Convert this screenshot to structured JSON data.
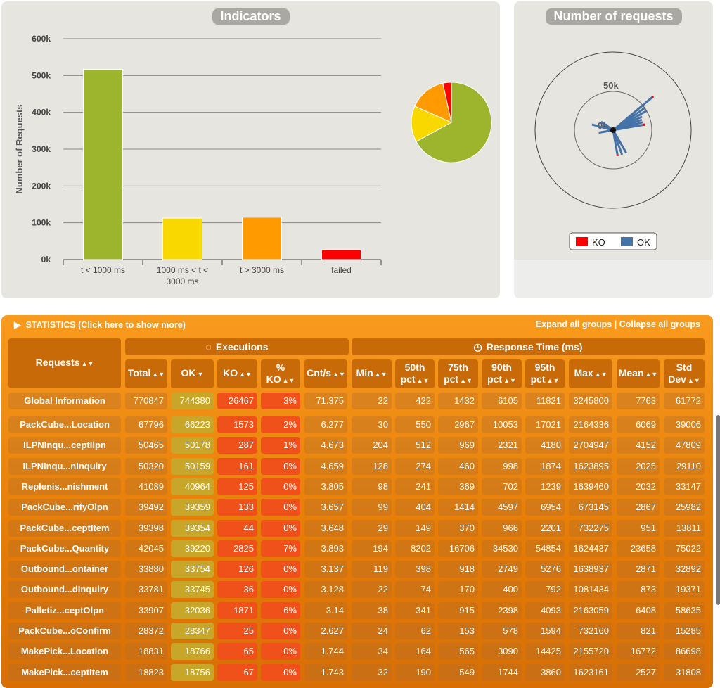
{
  "indicators": {
    "title": "Indicators",
    "ylabel": "Number of Requests"
  },
  "requests_chart": {
    "title": "Number of requests",
    "ring_label": "50k",
    "center_label": "0k",
    "legend": [
      {
        "label": "KO",
        "color": "#ff0000"
      },
      {
        "label": "OK",
        "color": "#4572a7"
      }
    ]
  },
  "chart_data": [
    {
      "type": "bar",
      "title": "Indicators",
      "ylabel": "Number of Requests",
      "ylim": [
        0,
        600000
      ],
      "yticks": [
        "0k",
        "100k",
        "200k",
        "300k",
        "400k",
        "500k",
        "600k"
      ],
      "categories": [
        "t < 1000 ms",
        "1000 ms < t < 3000 ms",
        "t > 3000 ms",
        "failed"
      ],
      "values": [
        517000,
        112500,
        115000,
        26467
      ],
      "colors": [
        "#9cb52d",
        "#f9d800",
        "#ff9b00",
        "#ff0000"
      ],
      "grid": true
    },
    {
      "type": "pie",
      "values": [
        517000,
        112500,
        115000,
        26467
      ],
      "colors": [
        "#9cb52d",
        "#f9d800",
        "#ff9b00",
        "#ff0000"
      ]
    }
  ],
  "stats": {
    "title": "STATISTICS (Click here to show more)",
    "expand": "Expand all groups",
    "sep": "|",
    "collapse": "Collapse all groups",
    "group_exec": "Executions",
    "group_rt": "Response Time (ms)",
    "requests_header": "Requests",
    "columns": [
      "Total",
      "OK",
      "KO",
      "% KO",
      "Cnt/s",
      "Min",
      "50th pct",
      "75th pct",
      "90th pct",
      "95th pct",
      "Max",
      "Mean",
      "Std Dev"
    ],
    "global": [
      "Global Information",
      "770847",
      "744380",
      "26467",
      "3%",
      "71.375",
      "22",
      "422",
      "1432",
      "6105",
      "11821",
      "3245800",
      "7763",
      "61772"
    ],
    "rows": [
      [
        "PackCube...Location",
        "67796",
        "66223",
        "1573",
        "2%",
        "6.277",
        "30",
        "550",
        "2967",
        "10053",
        "17021",
        "2164336",
        "6069",
        "39006"
      ],
      [
        "ILPNInqu...ceptIlpn",
        "50465",
        "50178",
        "287",
        "1%",
        "4.673",
        "204",
        "512",
        "969",
        "2321",
        "4180",
        "2704947",
        "4152",
        "47809"
      ],
      [
        "ILPNInqu...nInquiry",
        "50320",
        "50159",
        "161",
        "0%",
        "4.659",
        "128",
        "274",
        "460",
        "998",
        "1874",
        "1623895",
        "2025",
        "29110"
      ],
      [
        "Replenis...nishment",
        "41089",
        "40964",
        "125",
        "0%",
        "3.805",
        "98",
        "241",
        "369",
        "702",
        "1239",
        "1639460",
        "2032",
        "33147"
      ],
      [
        "PackCube...rifyOlpn",
        "39492",
        "39359",
        "133",
        "0%",
        "3.657",
        "99",
        "404",
        "1414",
        "4597",
        "6954",
        "673145",
        "2867",
        "25982"
      ],
      [
        "PackCube...ceptItem",
        "39398",
        "39354",
        "44",
        "0%",
        "3.648",
        "29",
        "149",
        "370",
        "966",
        "2201",
        "732275",
        "951",
        "13811"
      ],
      [
        "PackCube...Quantity",
        "42045",
        "39220",
        "2825",
        "7%",
        "3.893",
        "194",
        "8202",
        "16706",
        "34530",
        "54854",
        "1624437",
        "23658",
        "75022"
      ],
      [
        "Outbound...ontainer",
        "33880",
        "33754",
        "126",
        "0%",
        "3.137",
        "119",
        "398",
        "918",
        "2749",
        "5276",
        "1638937",
        "2871",
        "32892"
      ],
      [
        "Outbound...dInquiry",
        "33781",
        "33745",
        "36",
        "0%",
        "3.128",
        "22",
        "74",
        "170",
        "400",
        "792",
        "1081434",
        "873",
        "19371"
      ],
      [
        "Palletiz...ceptOlpn",
        "33907",
        "32036",
        "1871",
        "6%",
        "3.14",
        "38",
        "341",
        "915",
        "2398",
        "4093",
        "2163059",
        "6408",
        "58635"
      ],
      [
        "PackCube...oConfirm",
        "28372",
        "28347",
        "25",
        "0%",
        "2.627",
        "24",
        "62",
        "153",
        "578",
        "1594",
        "732160",
        "821",
        "15285"
      ],
      [
        "MakePick...Location",
        "18831",
        "18766",
        "65",
        "0%",
        "1.744",
        "34",
        "164",
        "565",
        "3090",
        "14425",
        "2155720",
        "16772",
        "86698"
      ],
      [
        "MakePick...ceptItem",
        "18823",
        "18756",
        "67",
        "0%",
        "1.743",
        "32",
        "190",
        "549",
        "1744",
        "3860",
        "1623161",
        "2527",
        "31808"
      ]
    ]
  }
}
